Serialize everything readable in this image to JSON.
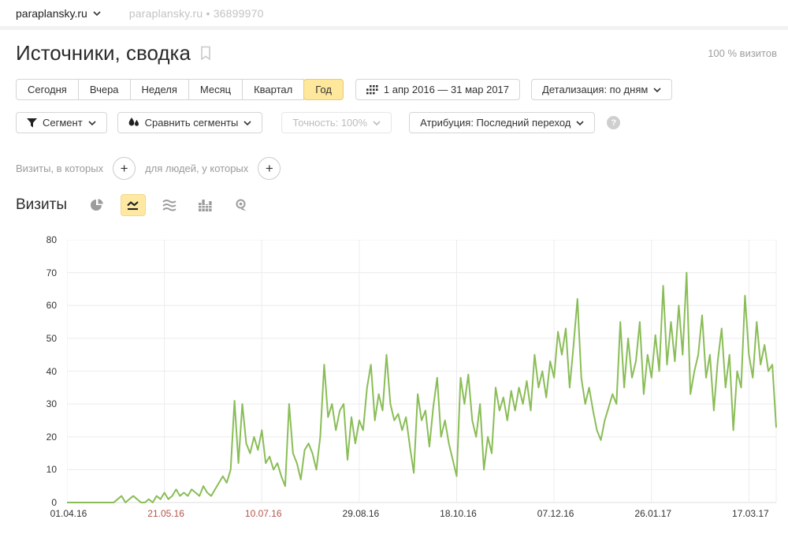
{
  "header": {
    "site": "paraplansky.ru",
    "site_muted": "paraplansky.ru",
    "bullet": "•",
    "counter_id": "36899970"
  },
  "page": {
    "title": "Источники, сводка",
    "visits_share": "100 % визитов"
  },
  "period_tabs": {
    "items": [
      "Сегодня",
      "Вчера",
      "Неделя",
      "Месяц",
      "Квартал",
      "Год"
    ],
    "selected": "Год"
  },
  "date_range": {
    "label": "1 апр 2016 — 31 мар 2017"
  },
  "detailing": {
    "label": "Детализация: по дням"
  },
  "toolbar": {
    "segment": "Сегмент",
    "compare": "Сравнить сегменты",
    "accuracy": "Точность: 100%",
    "attribution": "Атрибуция: Последний переход",
    "help": "?"
  },
  "filters": {
    "visits_label": "Визиты, в которых",
    "people_label": "для людей, у которых",
    "add": "+"
  },
  "metric": {
    "title": "Визиты",
    "chart_type_icons": [
      "pie-chart-icon",
      "line-chart-icon",
      "stacked-chart-icon",
      "columns-chart-icon",
      "map-chart-icon"
    ],
    "selected_type": "line"
  },
  "chart_data": {
    "type": "line",
    "title": "Визиты",
    "xlabel": "",
    "ylabel": "",
    "ylim": [
      0,
      80
    ],
    "y_ticks": [
      0,
      10,
      20,
      30,
      40,
      50,
      60,
      70,
      80
    ],
    "grid": true,
    "legend": "none",
    "x_range_days": [
      0,
      364
    ],
    "x_ticks": [
      {
        "day": 0,
        "label": "01.04.16",
        "red": false
      },
      {
        "day": 50,
        "label": "21.05.16",
        "red": true
      },
      {
        "day": 100,
        "label": "10.07.16",
        "red": true
      },
      {
        "day": 150,
        "label": "29.08.16",
        "red": false
      },
      {
        "day": 200,
        "label": "18.10.16",
        "red": false
      },
      {
        "day": 250,
        "label": "07.12.16",
        "red": false
      },
      {
        "day": 300,
        "label": "26.01.17",
        "red": false
      },
      {
        "day": 350,
        "label": "17.03.17",
        "red": false
      }
    ],
    "series": [
      {
        "name": "Визиты",
        "color": "#8abd57",
        "day_step": 2,
        "values": [
          0,
          0,
          0,
          0,
          0,
          0,
          0,
          0,
          0,
          0,
          0,
          0,
          0,
          1,
          2,
          0,
          1,
          2,
          1,
          0,
          0,
          1,
          0,
          2,
          1,
          3,
          1,
          2,
          4,
          2,
          3,
          2,
          4,
          3,
          2,
          5,
          3,
          2,
          4,
          6,
          8,
          6,
          10,
          31,
          12,
          30,
          18,
          15,
          20,
          16,
          22,
          12,
          14,
          10,
          12,
          8,
          5,
          30,
          15,
          12,
          7,
          16,
          18,
          15,
          10,
          20,
          42,
          26,
          30,
          22,
          28,
          30,
          13,
          26,
          18,
          25,
          22,
          35,
          42,
          25,
          33,
          28,
          45,
          30,
          25,
          27,
          22,
          26,
          17,
          9,
          33,
          25,
          28,
          17,
          29,
          38,
          20,
          25,
          18,
          13,
          8,
          38,
          30,
          39,
          25,
          20,
          30,
          10,
          20,
          15,
          35,
          28,
          32,
          25,
          34,
          28,
          35,
          30,
          37,
          28,
          45,
          35,
          40,
          32,
          43,
          38,
          52,
          45,
          53,
          35,
          48,
          62,
          38,
          30,
          35,
          28,
          22,
          19,
          25,
          29,
          33,
          30,
          55,
          35,
          50,
          38,
          43,
          55,
          33,
          45,
          38,
          51,
          40,
          66,
          42,
          55,
          43,
          60,
          45,
          70,
          33,
          40,
          45,
          57,
          38,
          45,
          28,
          43,
          53,
          35,
          45,
          22,
          40,
          35,
          63,
          45,
          38,
          55,
          42,
          48,
          40,
          42,
          23
        ]
      }
    ],
    "colors": {
      "line": "#8abd57",
      "grid": "#ececec",
      "axis": "#dcdcdc",
      "tick_dark": "#333333",
      "tick_red": "#b5544a"
    }
  }
}
